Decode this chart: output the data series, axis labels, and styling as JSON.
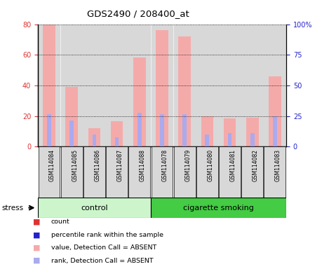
{
  "title": "GDS2490 / 208400_at",
  "samples": [
    "GSM114084",
    "GSM114085",
    "GSM114086",
    "GSM114087",
    "GSM114088",
    "GSM114078",
    "GSM114079",
    "GSM114080",
    "GSM114081",
    "GSM114082",
    "GSM114083"
  ],
  "pink_bar_values": [
    80,
    39,
    12,
    16.5,
    58.5,
    76,
    72,
    20,
    18.5,
    19,
    46
  ],
  "blue_bar_values": [
    21,
    17,
    8,
    6,
    22,
    21,
    21,
    8,
    9,
    9,
    20
  ],
  "control_label": "control",
  "smoking_label": "cigarette smoking",
  "stress_label": "stress",
  "ylim_left": [
    0,
    80
  ],
  "ylim_right": [
    0,
    100
  ],
  "yticks_left": [
    0,
    20,
    40,
    60,
    80
  ],
  "ytick_labels_left": [
    "0",
    "20",
    "40",
    "60",
    "80"
  ],
  "ytick_labels_right": [
    "0",
    "25",
    "50",
    "75",
    "100%"
  ],
  "color_red": "#dd3333",
  "color_blue": "#2222cc",
  "color_pink": "#f5aaaa",
  "color_lightblue": "#aaaaee",
  "color_control_bg": "#ccf5cc",
  "color_smoking_bg": "#44cc44",
  "color_sample_bg": "#d8d8d8",
  "legend_items": [
    {
      "color": "#dd3333",
      "label": "count"
    },
    {
      "color": "#2222cc",
      "label": "percentile rank within the sample"
    },
    {
      "color": "#f5aaaa",
      "label": "value, Detection Call = ABSENT"
    },
    {
      "color": "#aaaaee",
      "label": "rank, Detection Call = ABSENT"
    }
  ]
}
